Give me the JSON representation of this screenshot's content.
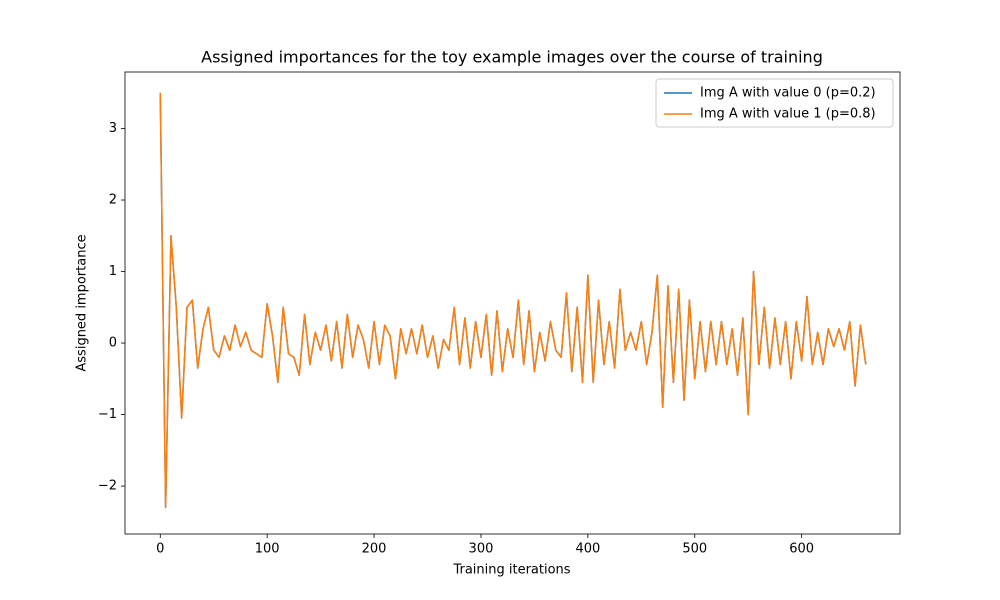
{
  "chart_data": {
    "type": "line",
    "title": "Assigned importances for the toy example images over the course of training",
    "x_label": "Training iterations",
    "y_label": "Assigned importance",
    "x": [
      0,
      5,
      10,
      15,
      20,
      25,
      30,
      35,
      40,
      45,
      50,
      55,
      60,
      65,
      70,
      75,
      80,
      85,
      90,
      95,
      100,
      105,
      110,
      115,
      120,
      125,
      130,
      135,
      140,
      145,
      150,
      155,
      160,
      165,
      170,
      175,
      180,
      185,
      190,
      195,
      200,
      205,
      210,
      215,
      220,
      225,
      230,
      235,
      240,
      245,
      250,
      255,
      260,
      265,
      270,
      275,
      280,
      285,
      290,
      295,
      300,
      305,
      310,
      315,
      320,
      325,
      330,
      335,
      340,
      345,
      350,
      355,
      360,
      365,
      370,
      375,
      380,
      385,
      390,
      395,
      400,
      405,
      410,
      415,
      420,
      425,
      430,
      435,
      440,
      445,
      450,
      455,
      460,
      465,
      470,
      475,
      480,
      485,
      490,
      495,
      500,
      505,
      510,
      515,
      520,
      525,
      530,
      535,
      540,
      545,
      550,
      555,
      560,
      565,
      570,
      575,
      580,
      585,
      590,
      595,
      600,
      605,
      610,
      615,
      620,
      625,
      630,
      635,
      640,
      645,
      650,
      655,
      660
    ],
    "series": [
      {
        "name": "Img A with value 0 (p=0.2)",
        "color": "#1f77b4",
        "values": [
          3.5,
          -2.3,
          1.5,
          0.5,
          -1.05,
          0.5,
          0.6,
          -0.35,
          0.2,
          0.5,
          -0.1,
          -0.2,
          0.1,
          -0.1,
          0.25,
          -0.05,
          0.15,
          -0.1,
          -0.15,
          -0.2,
          0.55,
          0.1,
          -0.55,
          0.5,
          -0.15,
          -0.2,
          -0.45,
          0.4,
          -0.3,
          0.15,
          -0.1,
          0.25,
          -0.25,
          0.3,
          -0.35,
          0.4,
          -0.2,
          0.25,
          0.05,
          -0.35,
          0.3,
          -0.3,
          0.25,
          0.1,
          -0.5,
          0.2,
          -0.15,
          0.2,
          -0.15,
          0.25,
          -0.2,
          0.1,
          -0.35,
          0.05,
          -0.1,
          0.5,
          -0.3,
          0.35,
          -0.35,
          0.3,
          -0.2,
          0.4,
          -0.45,
          0.45,
          -0.4,
          0.2,
          -0.2,
          0.6,
          -0.3,
          0.45,
          -0.4,
          0.15,
          -0.25,
          0.3,
          -0.1,
          -0.2,
          0.7,
          -0.4,
          0.5,
          -0.55,
          0.95,
          -0.55,
          0.6,
          -0.3,
          0.3,
          -0.35,
          0.75,
          -0.1,
          0.15,
          -0.1,
          0.3,
          -0.3,
          0.15,
          0.95,
          -0.9,
          0.8,
          -0.55,
          0.75,
          -0.8,
          0.6,
          -0.5,
          0.3,
          -0.4,
          0.3,
          -0.3,
          0.3,
          -0.3,
          0.2,
          -0.45,
          0.35,
          -1.0,
          1.0,
          -0.3,
          0.5,
          -0.35,
          0.35,
          -0.3,
          0.3,
          -0.5,
          0.3,
          -0.25,
          0.65,
          -0.3,
          0.15,
          -0.3,
          0.2,
          -0.05,
          0.2,
          -0.1,
          0.3,
          -0.6,
          0.25,
          -0.3
        ]
      },
      {
        "name": "Img A with value 1 (p=0.8)",
        "color": "#ff7f0e",
        "values": [
          3.5,
          -2.3,
          1.5,
          0.5,
          -1.05,
          0.5,
          0.6,
          -0.35,
          0.2,
          0.5,
          -0.1,
          -0.2,
          0.1,
          -0.1,
          0.25,
          -0.05,
          0.15,
          -0.1,
          -0.15,
          -0.2,
          0.55,
          0.1,
          -0.55,
          0.5,
          -0.15,
          -0.2,
          -0.45,
          0.4,
          -0.3,
          0.15,
          -0.1,
          0.25,
          -0.25,
          0.3,
          -0.35,
          0.4,
          -0.2,
          0.25,
          0.05,
          -0.35,
          0.3,
          -0.3,
          0.25,
          0.1,
          -0.5,
          0.2,
          -0.15,
          0.2,
          -0.15,
          0.25,
          -0.2,
          0.1,
          -0.35,
          0.05,
          -0.1,
          0.5,
          -0.3,
          0.35,
          -0.35,
          0.3,
          -0.2,
          0.4,
          -0.45,
          0.45,
          -0.4,
          0.2,
          -0.2,
          0.6,
          -0.3,
          0.45,
          -0.4,
          0.15,
          -0.25,
          0.3,
          -0.1,
          -0.2,
          0.7,
          -0.4,
          0.5,
          -0.55,
          0.95,
          -0.55,
          0.6,
          -0.3,
          0.3,
          -0.35,
          0.75,
          -0.1,
          0.15,
          -0.1,
          0.3,
          -0.3,
          0.15,
          0.95,
          -0.9,
          0.8,
          -0.55,
          0.75,
          -0.8,
          0.6,
          -0.5,
          0.3,
          -0.4,
          0.3,
          -0.3,
          0.3,
          -0.3,
          0.2,
          -0.45,
          0.35,
          -1.0,
          1.0,
          -0.3,
          0.5,
          -0.35,
          0.35,
          -0.3,
          0.3,
          -0.5,
          0.3,
          -0.25,
          0.65,
          -0.3,
          0.15,
          -0.3,
          0.2,
          -0.05,
          0.2,
          -0.1,
          0.3,
          -0.6,
          0.25,
          -0.3
        ]
      }
    ],
    "xlim": [
      -33,
      692
    ],
    "ylim": [
      -2.67,
      3.79
    ],
    "xticks": [
      0,
      100,
      200,
      300,
      400,
      500,
      600
    ],
    "yticks": [
      {
        "value": -2,
        "label": "−2"
      },
      {
        "value": -1,
        "label": "−1"
      },
      0,
      1,
      2,
      3
    ],
    "legend": "upper right",
    "grid": false
  }
}
